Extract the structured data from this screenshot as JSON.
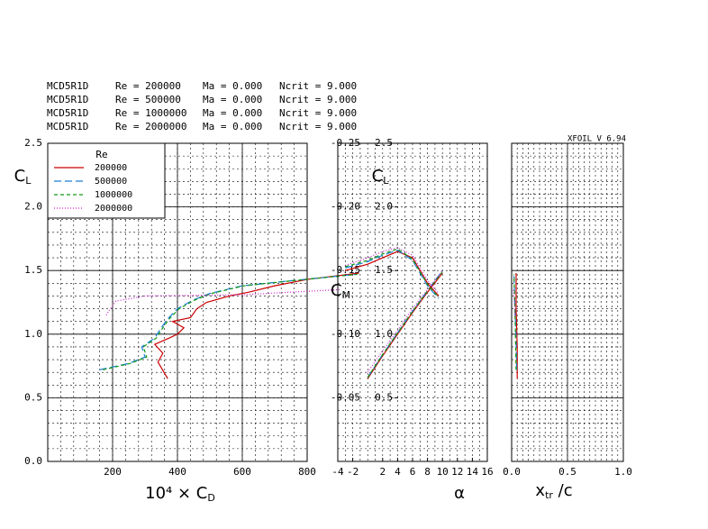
{
  "header": [
    {
      "airfoil": "MCD5R1D",
      "re": "Re = 200000",
      "ma": "Ma = 0.000",
      "ncrit": "Ncrit = 9.000"
    },
    {
      "airfoil": "MCD5R1D",
      "re": "Re = 500000",
      "ma": "Ma = 0.000",
      "ncrit": "Ncrit = 9.000"
    },
    {
      "airfoil": "MCD5R1D",
      "re": "Re = 1000000",
      "ma": "Ma = 0.000",
      "ncrit": "Ncrit = 9.000"
    },
    {
      "airfoil": "MCD5R1D",
      "re": "Re = 2000000",
      "ma": "Ma = 0.000",
      "ncrit": "Ncrit = 9.000"
    }
  ],
  "version": "XFOIL V 6.94",
  "chart_data": [
    {
      "type": "line",
      "legend_title": "Re",
      "legend": "upper left",
      "xlabel": [
        "10⁴ × C",
        "D"
      ],
      "ylabel": [
        "C",
        "L"
      ],
      "xlim": [
        0,
        800
      ],
      "xticks": [
        200,
        400,
        600,
        800
      ],
      "ylim": [
        0,
        2.5
      ],
      "yticks": [
        {
          "value": 0,
          "label": "0.0"
        },
        0.5,
        {
          "value": 1,
          "label": "1.0"
        },
        1.5,
        {
          "value": 2,
          "label": "2.0"
        },
        2.5
      ],
      "grid": true,
      "series": [
        {
          "name": "200000",
          "color": "#cc0000",
          "linestyle": "solid",
          "x": [
            370,
            340,
            355,
            330,
            375,
            400,
            420,
            385,
            440,
            460,
            490,
            560,
            620,
            700,
            800,
            960
          ],
          "values": [
            0.65,
            0.78,
            0.85,
            0.92,
            0.97,
            1.0,
            1.05,
            1.1,
            1.13,
            1.2,
            1.25,
            1.3,
            1.33,
            1.38,
            1.43,
            1.48
          ]
        },
        {
          "name": "500000",
          "color": "#1a7fd4",
          "linestyle": "dashed",
          "x": [
            160,
            250,
            300,
            290,
            330,
            350,
            370,
            400,
            450,
            500,
            600,
            750,
            950
          ],
          "values": [
            0.72,
            0.77,
            0.82,
            0.9,
            0.97,
            1.05,
            1.12,
            1.2,
            1.27,
            1.32,
            1.38,
            1.42,
            1.47
          ]
        },
        {
          "name": "1000000",
          "color": "#119911",
          "linestyle": "short-dashed",
          "x": [
            170,
            255,
            305,
            295,
            335,
            355,
            375,
            405,
            455,
            505,
            605,
            755,
            955
          ],
          "values": [
            0.72,
            0.77,
            0.82,
            0.9,
            0.97,
            1.05,
            1.12,
            1.2,
            1.27,
            1.32,
            1.38,
            1.42,
            1.47
          ]
        },
        {
          "name": "2000000",
          "color": "#cc22cc",
          "linestyle": "dotted",
          "x": [
            180,
            210,
            300,
            600,
            900
          ],
          "values": [
            1.15,
            1.26,
            1.3,
            1.31,
            1.35
          ]
        }
      ]
    },
    {
      "type": "line",
      "xlabel": [
        "α"
      ],
      "ylabel": [
        "C",
        "L"
      ],
      "y2label": [
        "C",
        "M"
      ],
      "xlim": [
        -4,
        16
      ],
      "xticks": [
        -4,
        -2,
        2,
        4,
        6,
        8,
        10,
        12,
        14,
        16
      ],
      "ylim": [
        0,
        2.5
      ],
      "yticks": [
        0.5,
        {
          "value": 1,
          "label": "1.0"
        },
        1.5,
        {
          "value": 2,
          "label": "2.0"
        },
        2.5
      ],
      "y2lim": [
        0,
        -0.25
      ],
      "y2ticks": [
        -0.05,
        {
          "value": -0.1,
          "label": "-0.10"
        },
        -0.15,
        {
          "value": -0.2,
          "label": "-0.20"
        },
        -0.25
      ],
      "grid": true,
      "series": [
        {
          "color": "#cc0000",
          "linestyle": "solid",
          "x": [
            0,
            2,
            4,
            6,
            8,
            10
          ],
          "values": [
            0.65,
            0.83,
            1.0,
            1.17,
            1.33,
            1.48
          ]
        },
        {
          "color": "#1a7fd4",
          "linestyle": "dashed",
          "x": [
            0,
            2,
            4,
            6,
            8,
            10
          ],
          "values": [
            0.66,
            0.84,
            1.01,
            1.18,
            1.34,
            1.5
          ]
        },
        {
          "color": "#119911",
          "linestyle": "short-dashed",
          "x": [
            0,
            2,
            4,
            6,
            8,
            10
          ],
          "values": [
            0.66,
            0.84,
            1.01,
            1.18,
            1.34,
            1.49
          ]
        },
        {
          "color": "#cc22cc",
          "linestyle": "dotted",
          "x": [
            0,
            2,
            4,
            6,
            8,
            10
          ],
          "values": [
            0.7,
            0.87,
            1.03,
            1.2,
            1.35,
            1.5
          ]
        },
        {
          "color": "#cc0000",
          "linestyle": "solid",
          "axis": "y2",
          "x": [
            -3,
            0,
            2,
            4,
            6,
            8,
            9.5
          ],
          "values": [
            -0.15,
            -0.155,
            -0.16,
            -0.165,
            -0.16,
            -0.14,
            -0.13
          ]
        },
        {
          "color": "#1a7fd4",
          "linestyle": "dashed",
          "axis": "y2",
          "x": [
            -3,
            0,
            2,
            4,
            6,
            8,
            9.5
          ],
          "values": [
            -0.152,
            -0.157,
            -0.162,
            -0.166,
            -0.158,
            -0.138,
            -0.128
          ]
        },
        {
          "color": "#119911",
          "linestyle": "short-dashed",
          "axis": "y2",
          "x": [
            -3,
            0,
            2,
            4,
            6,
            8,
            9.5
          ],
          "values": [
            -0.153,
            -0.158,
            -0.163,
            -0.167,
            -0.159,
            -0.139,
            -0.129
          ]
        },
        {
          "color": "#cc22cc",
          "linestyle": "dotted",
          "axis": "y2",
          "x": [
            -3,
            0,
            2,
            4,
            6,
            8,
            9.5
          ],
          "values": [
            -0.154,
            -0.16,
            -0.165,
            -0.168,
            -0.162,
            -0.142,
            -0.132
          ]
        }
      ]
    },
    {
      "type": "line",
      "xlabel": [
        "x",
        "tr",
        " /c"
      ],
      "xlim": [
        0,
        1
      ],
      "xticks": [
        {
          "value": 0,
          "label": "0.0"
        },
        0.5,
        {
          "value": 1,
          "label": "1.0"
        }
      ],
      "ylim": [
        0,
        2.5
      ],
      "grid": true,
      "series": [
        {
          "color": "#cc0000",
          "linestyle": "solid",
          "x": [
            0.05,
            0.05,
            0.04,
            0.04
          ],
          "values": [
            0.65,
            0.9,
            1.2,
            1.48
          ]
        },
        {
          "color": "#1a7fd4",
          "linestyle": "dashed",
          "x": [
            0.045,
            0.04,
            0.03,
            0.02
          ],
          "values": [
            0.72,
            0.95,
            1.2,
            1.47
          ]
        },
        {
          "color": "#119911",
          "linestyle": "short-dashed",
          "x": [
            0.04,
            0.035,
            0.03,
            0.02
          ],
          "values": [
            0.72,
            0.95,
            1.2,
            1.47
          ]
        },
        {
          "color": "#cc22cc",
          "linestyle": "dotted",
          "x": [
            0.03,
            0.025,
            0.02,
            0.015
          ],
          "values": [
            1.15,
            1.25,
            1.3,
            1.35
          ]
        }
      ]
    }
  ]
}
